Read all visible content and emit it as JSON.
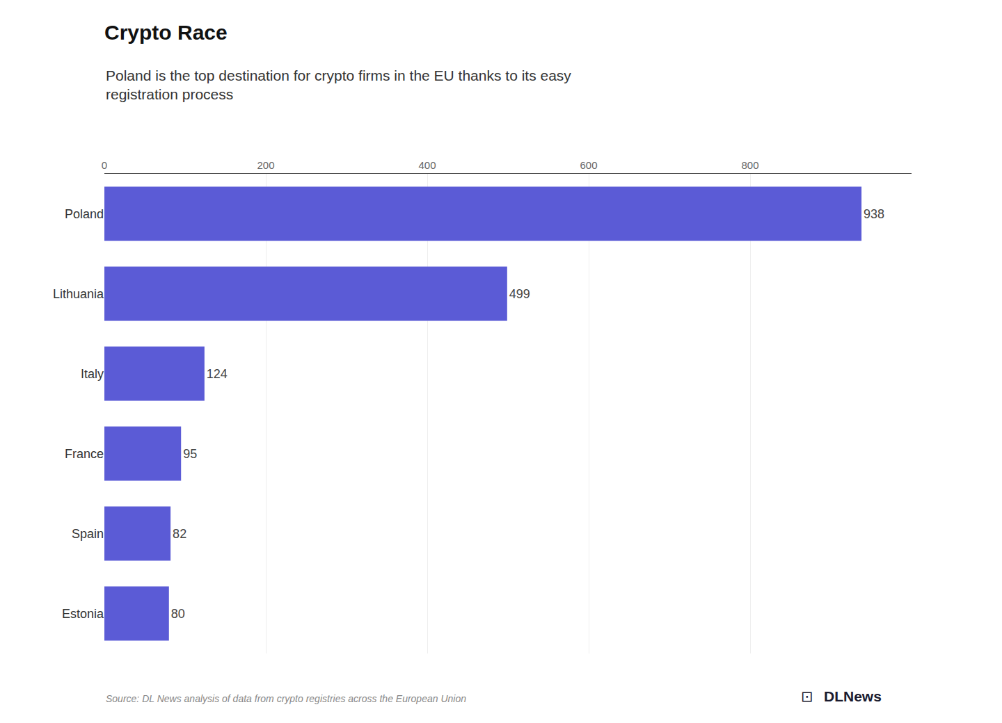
{
  "chart_data": {
    "type": "bar",
    "orientation": "horizontal",
    "title": "Crypto Race",
    "subtitle": [
      "Poland is the top destination for crypto firms in the EU thanks to its easy",
      "registration process"
    ],
    "categories": [
      "Poland",
      "Lithuania",
      "Italy",
      "France",
      "Spain",
      "Estonia"
    ],
    "values": [
      938,
      499,
      124,
      95,
      82,
      80
    ],
    "color": "#5B5BD6",
    "xlim": [
      0,
      1000
    ],
    "xticks": [
      0,
      200,
      400,
      600,
      800
    ],
    "grid": true,
    "data_labels": true,
    "annotations": [
      "Source: DL News analysis of data from crypto registries across the European Union",
      "⊡",
      "DLNews"
    ]
  }
}
